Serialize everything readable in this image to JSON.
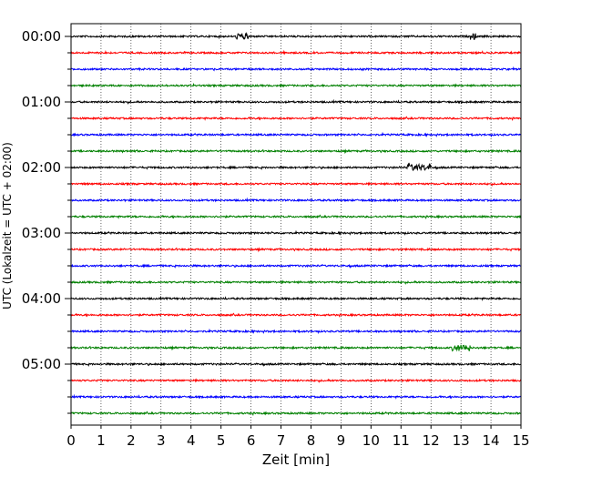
{
  "chart_data": {
    "type": "line",
    "title": "",
    "xlabel": "Zeit  [min]",
    "ylabel": "UTC (Lokalzeit = UTC + 02:00)",
    "xlim": [
      0,
      15
    ],
    "x_ticks": [
      "0",
      "1",
      "2",
      "3",
      "4",
      "5",
      "6",
      "7",
      "8",
      "9",
      "10",
      "11",
      "12",
      "13",
      "14",
      "15"
    ],
    "y_tick_labels": [
      "00:00",
      "01:00",
      "02:00",
      "03:00",
      "04:00",
      "05:00"
    ],
    "grid": "vertical dotted lines at every minute",
    "rows_per_hour": 4,
    "row_interval_minutes": 15,
    "colors_cycle": [
      "#000000",
      "#ff0000",
      "#0000ff",
      "#008000"
    ],
    "rows": [
      {
        "start": "00:00",
        "color": "#000000"
      },
      {
        "start": "00:15",
        "color": "#ff0000"
      },
      {
        "start": "00:30",
        "color": "#0000ff"
      },
      {
        "start": "00:45",
        "color": "#008000"
      },
      {
        "start": "01:00",
        "color": "#000000"
      },
      {
        "start": "01:15",
        "color": "#ff0000"
      },
      {
        "start": "01:30",
        "color": "#0000ff"
      },
      {
        "start": "01:45",
        "color": "#008000"
      },
      {
        "start": "02:00",
        "color": "#000000"
      },
      {
        "start": "02:15",
        "color": "#ff0000"
      },
      {
        "start": "02:30",
        "color": "#0000ff"
      },
      {
        "start": "02:45",
        "color": "#008000"
      },
      {
        "start": "03:00",
        "color": "#000000"
      },
      {
        "start": "03:15",
        "color": "#ff0000"
      },
      {
        "start": "03:30",
        "color": "#0000ff"
      },
      {
        "start": "03:45",
        "color": "#008000"
      },
      {
        "start": "04:00",
        "color": "#000000"
      },
      {
        "start": "04:15",
        "color": "#ff0000"
      },
      {
        "start": "04:30",
        "color": "#0000ff"
      },
      {
        "start": "04:45",
        "color": "#008000"
      },
      {
        "start": "05:00",
        "color": "#000000"
      },
      {
        "start": "05:15",
        "color": "#ff0000"
      },
      {
        "start": "05:30",
        "color": "#0000ff"
      },
      {
        "start": "05:45",
        "color": "#008000"
      }
    ],
    "events": [
      {
        "row": "02:00",
        "x_min": 11.2,
        "x_max": 12.0
      },
      {
        "row": "04:45",
        "x_min": 12.7,
        "x_max": 13.3
      },
      {
        "row": "00:00",
        "x_min": 5.5,
        "x_max": 5.9
      },
      {
        "row": "00:00",
        "x_min": 13.3,
        "x_max": 13.5
      }
    ]
  }
}
